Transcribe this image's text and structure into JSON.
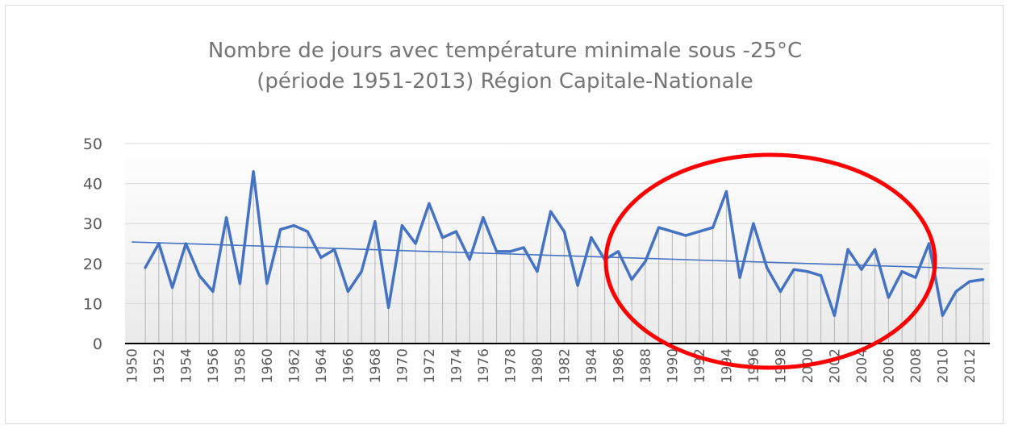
{
  "chart_data": {
    "type": "line",
    "title_line1": "Nombre de jours avec température minimale sous -25°C",
    "title_line2": "(période 1951-2013) Région Capitale-Nationale",
    "xlabel": "",
    "ylabel": "",
    "ylim": [
      0,
      50
    ],
    "yticks": [
      0,
      10,
      20,
      30,
      40,
      50
    ],
    "xlim": [
      1950,
      2013
    ],
    "xticks": [
      1950,
      1952,
      1954,
      1956,
      1958,
      1960,
      1962,
      1964,
      1966,
      1968,
      1970,
      1972,
      1974,
      1976,
      1978,
      1980,
      1982,
      1984,
      1986,
      1988,
      1990,
      1992,
      1994,
      1996,
      1998,
      2000,
      2002,
      2004,
      2006,
      2008,
      2010,
      2012
    ],
    "grid": "horizontal",
    "drop_lines": true,
    "line_color": "#4472c4",
    "trend_color": "#4472c4",
    "annotation_color": "#ff0000",
    "annotation": "red ellipse circling 1985-2009",
    "series": [
      {
        "x": [
          1951,
          1952,
          1953,
          1954,
          1955,
          1956,
          1957,
          1958,
          1959,
          1960,
          1961,
          1962,
          1963,
          1964,
          1965,
          1966,
          1967,
          1968,
          1969,
          1970,
          1971,
          1972,
          1973,
          1974,
          1975,
          1976,
          1977,
          1978,
          1979,
          1980,
          1981,
          1982,
          1983,
          1984,
          1985,
          1986,
          1987,
          1988,
          1989,
          1990,
          1991,
          1992,
          1993,
          1994,
          1995,
          1996,
          1997,
          1998,
          1999,
          2000,
          2001,
          2002,
          2003,
          2004,
          2005,
          2006,
          2007,
          2008,
          2009,
          2010,
          2011,
          2012,
          2013
        ],
        "values": [
          19,
          25,
          14,
          25,
          17,
          13,
          31.5,
          15,
          43,
          15,
          28.5,
          29.5,
          28,
          21.5,
          23.5,
          13,
          18,
          30.5,
          9,
          29.5,
          25,
          35,
          26.5,
          28,
          21,
          31.5,
          23,
          23,
          24,
          18,
          33,
          28,
          14.5,
          26.5,
          21,
          23,
          16,
          20.5,
          29,
          28,
          27,
          28,
          29,
          38,
          16.5,
          30,
          19,
          13,
          18.5,
          18,
          17,
          7,
          23.5,
          18.5,
          23.5,
          11.5,
          18,
          16.5,
          25,
          7,
          13,
          15.5,
          16
        ]
      }
    ],
    "trend": {
      "x": [
        1950,
        2013
      ],
      "values": [
        25.4,
        18.6
      ]
    }
  }
}
